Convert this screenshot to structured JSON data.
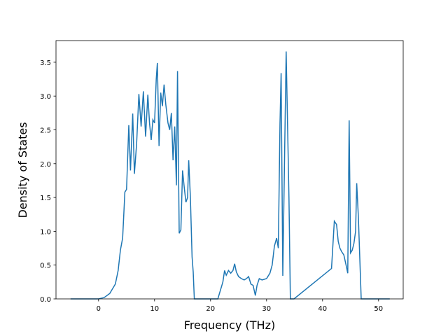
{
  "chart_data": {
    "type": "line",
    "xlabel": "Frequency (THz)",
    "ylabel": "Density of States",
    "xlim": [
      -7.6,
      54.4
    ],
    "ylim": [
      0,
      3.82
    ],
    "xticks": [
      0,
      10,
      20,
      30,
      40,
      50
    ],
    "yticks": [
      {
        "value": 0,
        "label": "0.0"
      },
      {
        "value": 0.5,
        "label": "0.5"
      },
      {
        "value": 1,
        "label": "1.0"
      },
      {
        "value": 1.5,
        "label": "1.5"
      },
      {
        "value": 2,
        "label": "2.0"
      },
      {
        "value": 2.5,
        "label": "2.5"
      },
      {
        "value": 3,
        "label": "3.0"
      },
      {
        "value": 3.5,
        "label": "3.5"
      }
    ],
    "series": [
      {
        "color": "#1f77b4",
        "x": [
          -5,
          0,
          1,
          2,
          3,
          3.5,
          3.9,
          4.3,
          4.7,
          5.0,
          5.4,
          5.7,
          6.1,
          6.4,
          6.8,
          7.2,
          7.6,
          8.0,
          8.4,
          8.8,
          9.1,
          9.4,
          9.7,
          10.0,
          10.3,
          10.5,
          10.8,
          11.1,
          11.4,
          11.7,
          12.0,
          12.4,
          12.7,
          13.0,
          13.3,
          13.6,
          13.9,
          14.1,
          14.4,
          14.7,
          15.0,
          15.3,
          15.6,
          15.9,
          16.1,
          16.4,
          16.7,
          16.9,
          17.1,
          21.3,
          22.2,
          22.5,
          22.8,
          23.2,
          23.6,
          24.0,
          24.3,
          24.6,
          25.0,
          25.5,
          26.0,
          26.4,
          26.8,
          27.2,
          27.6,
          28.0,
          28.3,
          28.7,
          29.2,
          30.0,
          30.6,
          31.0,
          31.4,
          31.8,
          32.1,
          32.4,
          32.6,
          32.9,
          33.5,
          34.0,
          34.25,
          34.9,
          41.6,
          42.1,
          42.5,
          42.8,
          43.1,
          43.4,
          43.8,
          44.2,
          44.5,
          44.75,
          45.0,
          45.3,
          45.6,
          45.9,
          46.1,
          46.4,
          46.9,
          52
        ],
        "values": [
          0,
          0,
          0.02,
          0.08,
          0.22,
          0.42,
          0.72,
          0.9,
          1.58,
          1.62,
          2.57,
          1.9,
          2.74,
          1.85,
          2.3,
          3.03,
          2.55,
          3.07,
          2.4,
          3.02,
          2.6,
          2.35,
          2.65,
          2.6,
          3.25,
          3.49,
          2.26,
          3.05,
          2.85,
          3.17,
          2.88,
          2.6,
          2.5,
          2.75,
          2.05,
          2.55,
          1.68,
          3.37,
          0.97,
          1.02,
          1.9,
          1.65,
          1.43,
          1.5,
          2.05,
          1.5,
          0.62,
          0.4,
          0,
          0,
          0.25,
          0.42,
          0.35,
          0.42,
          0.38,
          0.42,
          0.52,
          0.4,
          0.33,
          0.3,
          0.28,
          0.3,
          0.33,
          0.22,
          0.2,
          0.05,
          0.2,
          0.3,
          0.28,
          0.3,
          0.38,
          0.5,
          0.78,
          0.9,
          0.75,
          2.6,
          3.34,
          0.34,
          3.66,
          1.5,
          0,
          0,
          0.45,
          1.15,
          1.1,
          0.85,
          0.75,
          0.7,
          0.65,
          0.5,
          0.38,
          2.64,
          0.68,
          0.72,
          0.82,
          1.0,
          1.71,
          1.2,
          0,
          0
        ]
      }
    ]
  }
}
